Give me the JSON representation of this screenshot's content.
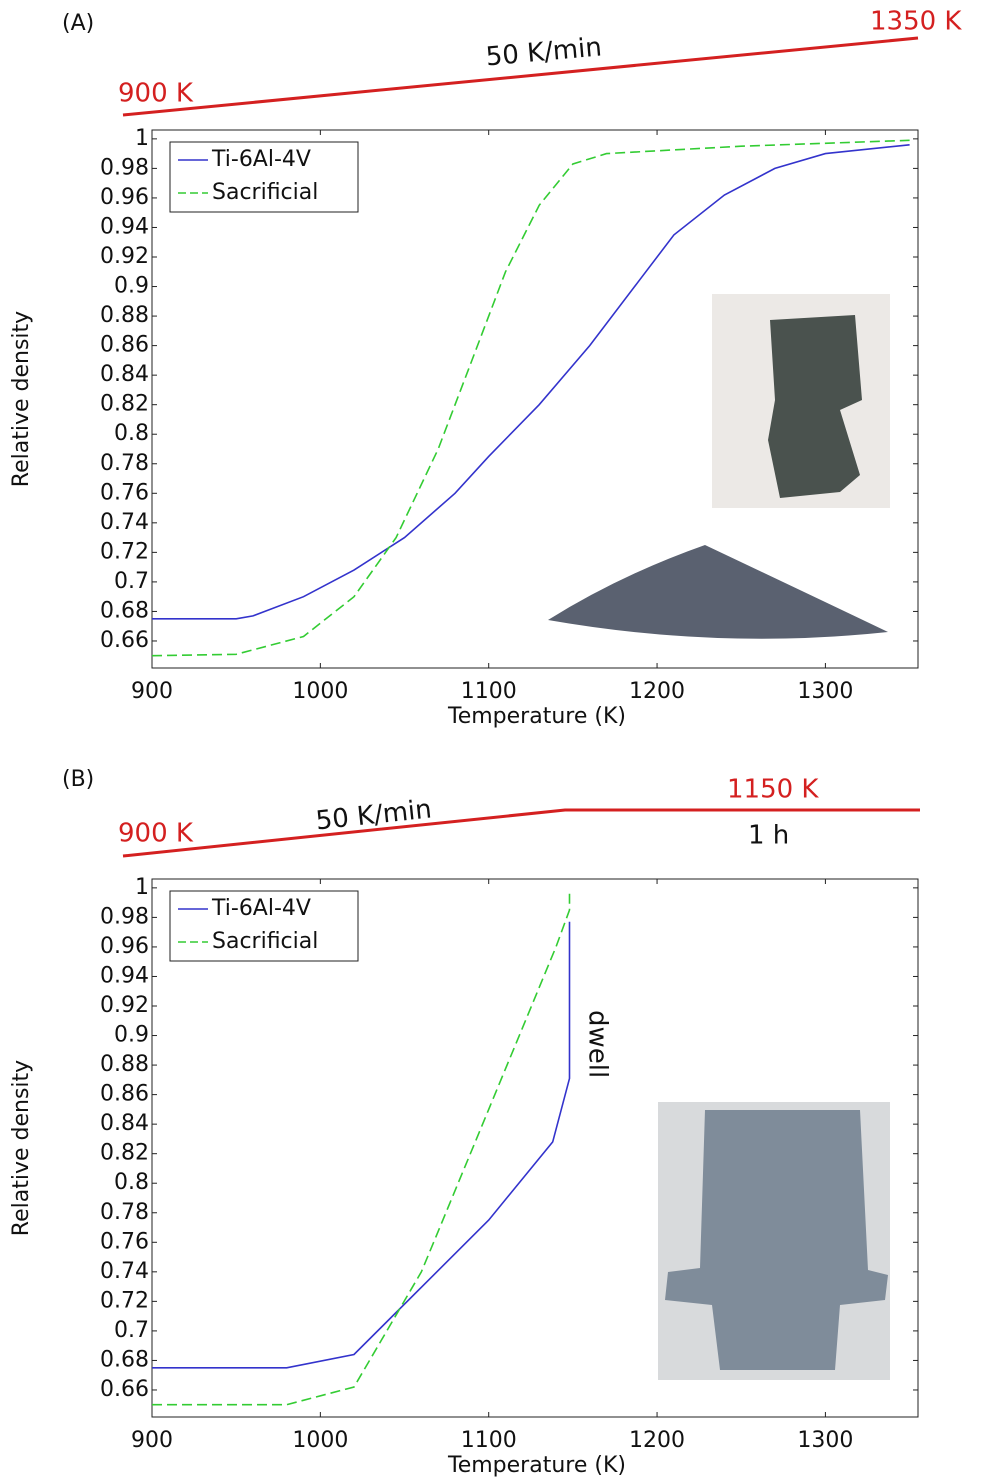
{
  "chart_data": [
    {
      "type": "line",
      "panel_label": "(A)",
      "start_label": "900 K",
      "end_label": "1350 K",
      "rate_label": "50 K/min",
      "x_label": "Temperature (K)",
      "y_label": "Relative density",
      "xlim": [
        900,
        1355
      ],
      "ylim": [
        0.6417,
        1.006
      ],
      "xticks": [
        900,
        1000,
        1100,
        1200,
        1300
      ],
      "yticks": [
        0.66,
        0.68,
        0.7,
        0.72,
        0.74,
        0.76,
        0.78,
        0.8,
        0.82,
        0.84,
        0.86,
        0.88,
        0.9,
        0.92,
        0.94,
        0.96,
        0.98,
        1
      ],
      "series": [
        {
          "name": "Ti-6Al-4V",
          "color": "#3333cc",
          "dash": false,
          "x": [
            900,
            950,
            960,
            990,
            1020,
            1050,
            1080,
            1100,
            1130,
            1160,
            1190,
            1210,
            1240,
            1270,
            1300,
            1350
          ],
          "values": [
            0.675,
            0.675,
            0.677,
            0.69,
            0.708,
            0.73,
            0.76,
            0.785,
            0.82,
            0.86,
            0.905,
            0.935,
            0.962,
            0.98,
            0.99,
            0.996
          ]
        },
        {
          "name": "Sacrificial",
          "color": "#33cc33",
          "dash": true,
          "x": [
            900,
            950,
            990,
            1020,
            1045,
            1070,
            1090,
            1110,
            1130,
            1150,
            1170,
            1250,
            1350
          ],
          "values": [
            0.65,
            0.651,
            0.663,
            0.69,
            0.73,
            0.79,
            0.85,
            0.91,
            0.955,
            0.983,
            0.99,
            0.995,
            0.999
          ]
        }
      ]
    },
    {
      "type": "line",
      "panel_label": "(B)",
      "start_label": "900 K",
      "end_label": "1150 K",
      "rate_label": "50 K/min",
      "hold_label": "1 h",
      "dwell_label": "dwell",
      "x_label": "Temperature (K)",
      "y_label": "Relative density",
      "xlim": [
        900,
        1355
      ],
      "ylim": [
        0.6417,
        1.006
      ],
      "xticks": [
        900,
        1000,
        1100,
        1200,
        1300
      ],
      "yticks": [
        0.66,
        0.68,
        0.7,
        0.72,
        0.74,
        0.76,
        0.78,
        0.8,
        0.82,
        0.84,
        0.86,
        0.88,
        0.9,
        0.92,
        0.94,
        0.96,
        0.98,
        1
      ],
      "series": [
        {
          "name": "Ti-6Al-4V",
          "color": "#3333cc",
          "dash": false,
          "x": [
            900,
            980,
            1020,
            1100,
            1138,
            1148,
            1148
          ],
          "values": [
            0.675,
            0.675,
            0.684,
            0.775,
            0.828,
            0.871,
            0.977
          ]
        },
        {
          "name": "Sacrificial",
          "color": "#33cc33",
          "dash": true,
          "x": [
            900,
            980,
            1020,
            1060,
            1100,
            1140,
            1148,
            1148
          ],
          "values": [
            0.65,
            0.65,
            0.662,
            0.74,
            0.85,
            0.96,
            0.985,
            0.998
          ]
        }
      ]
    }
  ]
}
